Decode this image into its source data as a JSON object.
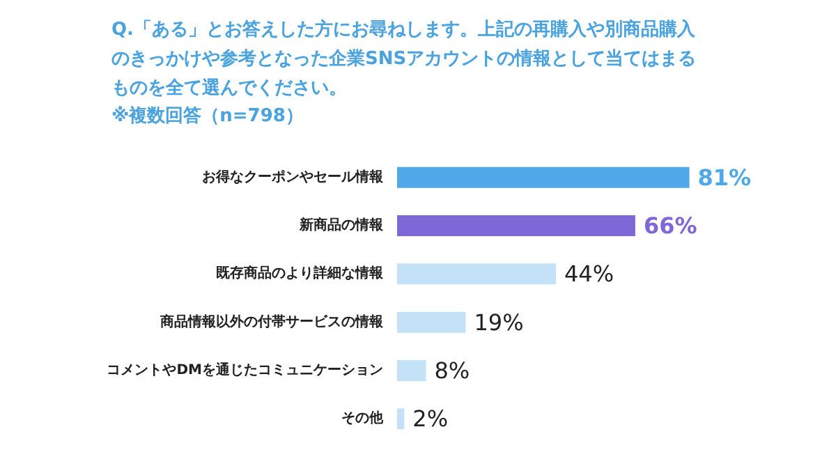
{
  "chart_data": {
    "type": "bar",
    "orientation": "horizontal",
    "title": "Q.「ある」とお答えした方にお尋ねします。上記の再購入や別商品購入のきっかけや参考となった企業SNSアカウントの情報として当てはまるものを全て選んでください。",
    "subtitle": "※複数回答（n=798）",
    "categories": [
      "お得なクーポンやセール情報",
      "新商品の情報",
      "既存商品のより詳細な情報",
      "商品情報以外の付帯サービスの情報",
      "コメントやDMを通じたコミュニケーション",
      "その他"
    ],
    "values": [
      81,
      66,
      44,
      19,
      8,
      2
    ],
    "colors": [
      "#4fa8e8",
      "#7e68d8",
      "#c3e1f7",
      "#c3e1f7",
      "#c3e1f7",
      "#c3e1f7"
    ],
    "value_labels": [
      "81%",
      "66%",
      "44%",
      "19%",
      "8%",
      "2%"
    ],
    "grid": false
  }
}
